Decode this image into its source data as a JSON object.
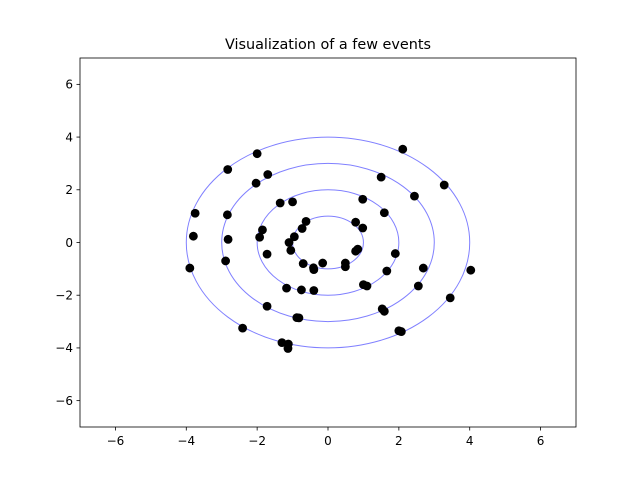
{
  "chart_data": {
    "type": "scatter",
    "title": "Visualization of a few events",
    "xlabel": "",
    "ylabel": "",
    "xlim": [
      -7,
      7
    ],
    "ylim": [
      -7,
      7
    ],
    "xticks": [
      -6,
      -4,
      -2,
      0,
      2,
      4,
      6
    ],
    "yticks": [
      -6,
      -4,
      -2,
      0,
      2,
      4,
      6
    ],
    "xtick_labels": [
      "−6",
      "−4",
      "−2",
      "0",
      "2",
      "4",
      "6"
    ],
    "ytick_labels": [
      "−6",
      "−4",
      "−2",
      "0",
      "2",
      "4",
      "6"
    ],
    "grid": false,
    "legend": "none",
    "circles": {
      "center": [
        0,
        0
      ],
      "radii": [
        1,
        2,
        3,
        4
      ],
      "color": "#8080ff"
    },
    "series": [
      {
        "color": "#000000",
        "marker": "circle",
        "points": [
          [
            -0.62,
            0.8
          ],
          [
            -0.73,
            0.53
          ],
          [
            -0.95,
            0.22
          ],
          [
            -1.05,
            -0.3
          ],
          [
            -1.1,
            0.0
          ],
          [
            -0.7,
            -0.8
          ],
          [
            -0.41,
            -0.96
          ],
          [
            -0.4,
            -1.03
          ],
          [
            -0.15,
            -0.78
          ],
          [
            0.49,
            -0.78
          ],
          [
            0.49,
            -0.92
          ],
          [
            0.78,
            -0.33
          ],
          [
            0.84,
            -0.25
          ],
          [
            0.98,
            0.55
          ],
          [
            0.78,
            0.77
          ],
          [
            -1.85,
            0.48
          ],
          [
            -1.93,
            0.2
          ],
          [
            -1.72,
            -0.44
          ],
          [
            -1.0,
            1.54
          ],
          [
            -1.35,
            1.5
          ],
          [
            -0.75,
            -1.8
          ],
          [
            -0.4,
            -1.82
          ],
          [
            -1.17,
            -1.73
          ],
          [
            1.1,
            -1.65
          ],
          [
            1.0,
            -1.6
          ],
          [
            1.66,
            -1.08
          ],
          [
            1.9,
            -0.42
          ],
          [
            1.59,
            1.13
          ],
          [
            0.98,
            1.64
          ],
          [
            1.5,
            2.48
          ],
          [
            -2.03,
            2.25
          ],
          [
            -1.7,
            2.58
          ],
          [
            -2.84,
            1.05
          ],
          [
            -2.82,
            0.12
          ],
          [
            -2.89,
            -0.7
          ],
          [
            -1.72,
            -2.42
          ],
          [
            -0.88,
            -2.85
          ],
          [
            -0.82,
            -2.86
          ],
          [
            1.53,
            -2.52
          ],
          [
            1.59,
            -2.61
          ],
          [
            2.0,
            -3.35
          ],
          [
            2.07,
            -3.38
          ],
          [
            2.55,
            -1.65
          ],
          [
            2.69,
            -0.97
          ],
          [
            2.44,
            1.76
          ],
          [
            -2.0,
            3.37
          ],
          [
            -2.83,
            2.77
          ],
          [
            -3.75,
            1.11
          ],
          [
            -3.8,
            0.24
          ],
          [
            -3.9,
            -0.97
          ],
          [
            -2.41,
            -3.25
          ],
          [
            -1.3,
            -3.8
          ],
          [
            -1.12,
            -3.85
          ],
          [
            -1.13,
            -4.02
          ],
          [
            3.45,
            -2.1
          ],
          [
            4.03,
            -1.05
          ],
          [
            3.28,
            2.18
          ],
          [
            2.11,
            3.54
          ]
        ]
      }
    ]
  }
}
